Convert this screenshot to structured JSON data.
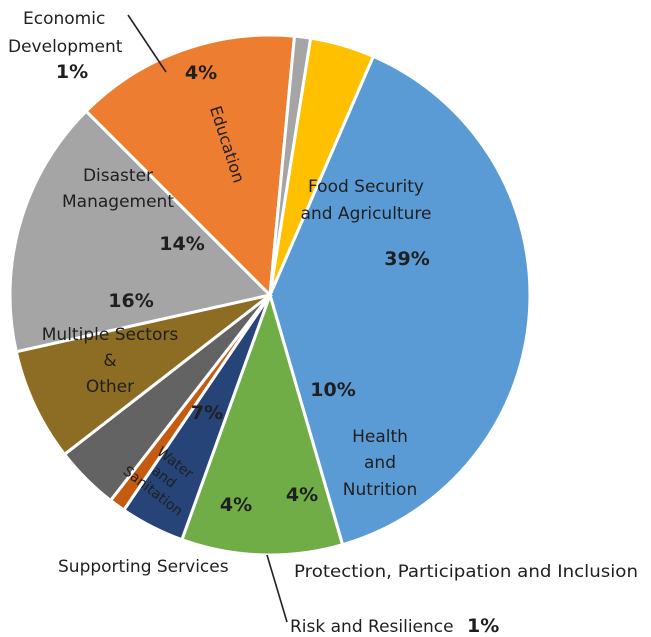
{
  "chart_data": {
    "type": "pie",
    "title": "",
    "slices": [
      {
        "label": "Food Security and Agriculture",
        "value": 39,
        "pct_label": "39%",
        "color": "#5b9bd5"
      },
      {
        "label": "Health and Nutrition",
        "value": 10,
        "pct_label": "10%",
        "color": "#70ad47"
      },
      {
        "label": "Protection, Participation and Inclusion",
        "value": 4,
        "pct_label": "4%",
        "color": "#264478"
      },
      {
        "label": "Risk and Resilience",
        "value": 1,
        "pct_label": "1%",
        "color": "#c55a11"
      },
      {
        "label": "Supporting Services",
        "value": 4,
        "pct_label": "4%",
        "color": "#636363"
      },
      {
        "label": "Water and Sanitation",
        "value": 7,
        "pct_label": "7%",
        "color": "#8c6d23"
      },
      {
        "label": "Multiple Sectors & Other",
        "value": 16,
        "pct_label": "16%",
        "color": "#a5a5a5"
      },
      {
        "label": "Disaster Management",
        "value": 14,
        "pct_label": "14%",
        "color": "#ed7d31"
      },
      {
        "label": "Economic Development",
        "value": 1,
        "pct_label": "1%",
        "color": "#a5a5a5"
      },
      {
        "label": "Education",
        "value": 4,
        "pct_label": "4%",
        "color": "#ffc000"
      }
    ],
    "labels": {
      "food_l1": "Food Security",
      "food_l2": "and Agriculture",
      "health_l1": "Health",
      "health_l2": "and",
      "health_l3": "Nutrition",
      "protection": "Protection, Participation and Inclusion",
      "risk": "Risk and Resilience",
      "supporting": "Supporting Services",
      "water_l1": "Water",
      "water_l2": "and",
      "water_l3": "Sanitation",
      "multi_l1": "Multiple Sectors",
      "multi_l2": "&",
      "multi_l3": "Other",
      "disaster_l1": "Disaster",
      "disaster_l2": "Management",
      "econ_l1": "Economic",
      "econ_l2": "Development",
      "education": "Education"
    },
    "legend": "none"
  }
}
